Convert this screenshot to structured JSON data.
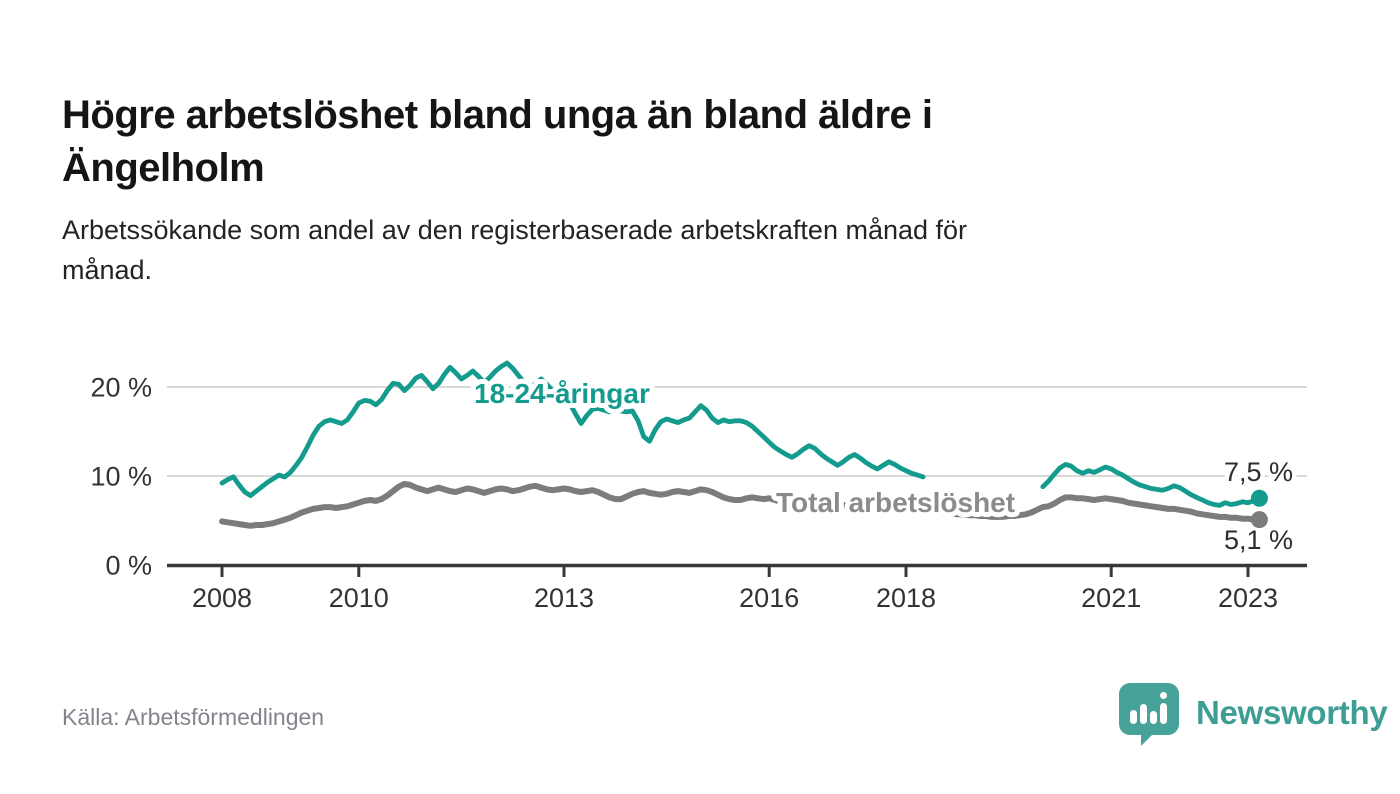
{
  "title": "Högre arbetslöshet bland unga än bland äldre i Ängelholm",
  "title_lines": [
    "Högre arbetslöshet bland unga än bland äldre i",
    "Ängelholm"
  ],
  "subtitle_lines": [
    "Arbetssökande som andel av den registerbaserade arbetskraften månad för",
    "månad."
  ],
  "source": "Källa: Arbetsförmedlingen",
  "logo": {
    "text": "Newsworthy",
    "icon": "bar-chart-speech-bubble-icon",
    "icon_color": "#47a29a",
    "text_color": "#3d9e94"
  },
  "colors": {
    "young_line": "#139b8d",
    "total_line": "#7c7c7c",
    "total_label": "#8b8b8b",
    "grid": "#d9d9d9",
    "axis": "#383838"
  },
  "chart_data": {
    "type": "line",
    "title": "",
    "xlabel": "",
    "ylabel": "",
    "unit": "%",
    "x_start_year": 2008,
    "x_end": "2023-03",
    "points_per_year": 12,
    "xlim": [
      2007.2,
      2023.87
    ],
    "ylim": [
      0,
      25
    ],
    "grid": "horizontal",
    "legend_position": "inline-labels",
    "x_ticks": [
      "2008",
      "2010",
      "2013",
      "2016",
      "2018",
      "2021",
      "2023"
    ],
    "x_tick_years": [
      2008,
      2010,
      2013,
      2016,
      2018,
      2021,
      2023
    ],
    "y_ticks": [
      {
        "value": 0,
        "label": "0 %",
        "grid": false
      },
      {
        "value": 10,
        "label": "10 %",
        "grid": true
      },
      {
        "value": 20,
        "label": "20 %",
        "grid": true
      }
    ],
    "series": [
      {
        "name": "18-24-åringar",
        "label": "18-24-åringar",
        "color": "#139b8d",
        "end_label": "7,5 %",
        "end_value": 7.5,
        "values": [
          9.2,
          9.6,
          9.9,
          9.0,
          8.2,
          7.8,
          8.3,
          8.8,
          9.3,
          9.7,
          10.1,
          9.9,
          10.4,
          11.2,
          12.1,
          13.3,
          14.6,
          15.6,
          16.1,
          16.3,
          16.1,
          15.9,
          16.3,
          17.2,
          18.2,
          18.5,
          18.4,
          18.0,
          18.6,
          19.6,
          20.4,
          20.3,
          19.6,
          20.2,
          21.0,
          21.3,
          20.6,
          19.8,
          20.4,
          21.4,
          22.2,
          21.6,
          20.9,
          21.3,
          21.8,
          21.2,
          20.5,
          21.1,
          21.8,
          22.3,
          22.7,
          22.1,
          21.3,
          20.5,
          19.8,
          20.4,
          20.9,
          20.3,
          19.6,
          19.1,
          18.9,
          18.2,
          17.0,
          15.9,
          16.8,
          17.5,
          17.6,
          17.4,
          17.2,
          17.4,
          17.3,
          17.2,
          17.3,
          16.2,
          14.4,
          13.9,
          15.2,
          16.1,
          16.4,
          16.2,
          16.0,
          16.3,
          16.5,
          17.2,
          17.9,
          17.4,
          16.5,
          16.0,
          16.3,
          16.1,
          16.2,
          16.2,
          16.0,
          15.6,
          15.0,
          14.4,
          13.8,
          13.2,
          12.8,
          12.4,
          12.1,
          12.5,
          13.0,
          13.4,
          13.1,
          12.5,
          12.0,
          11.6,
          11.2,
          11.6,
          12.1,
          12.4,
          12.0,
          11.5,
          11.1,
          10.8,
          11.2,
          11.6,
          11.3,
          10.9,
          10.6,
          10.3,
          10.1,
          9.9,
          null,
          null,
          null,
          null,
          null,
          null,
          null,
          null,
          null,
          null,
          null,
          null,
          null,
          null,
          null,
          null,
          null,
          null,
          null,
          null,
          8.8,
          9.4,
          10.2,
          10.9,
          11.3,
          11.1,
          10.6,
          10.3,
          10.6,
          10.4,
          10.7,
          11.0,
          10.8,
          10.4,
          10.1,
          9.7,
          9.3,
          9.0,
          8.8,
          8.6,
          8.5,
          8.4,
          8.6,
          8.9,
          8.7,
          8.3,
          7.9,
          7.6,
          7.3,
          7.0,
          6.8,
          6.7,
          7.0,
          6.8,
          6.9,
          7.1,
          7.0,
          7.2,
          7.5
        ]
      },
      {
        "name": "Total arbetslöshet",
        "label": "Total arbetslöshet",
        "color": "#7c7c7c",
        "end_label": "5,1 %",
        "end_value": 5.1,
        "values": [
          4.9,
          4.8,
          4.7,
          4.6,
          4.5,
          4.4,
          4.5,
          4.5,
          4.6,
          4.7,
          4.9,
          5.1,
          5.3,
          5.6,
          5.9,
          6.1,
          6.3,
          6.4,
          6.5,
          6.5,
          6.4,
          6.5,
          6.6,
          6.8,
          7.0,
          7.2,
          7.3,
          7.2,
          7.4,
          7.8,
          8.3,
          8.8,
          9.1,
          9.0,
          8.7,
          8.5,
          8.3,
          8.5,
          8.7,
          8.5,
          8.3,
          8.2,
          8.4,
          8.6,
          8.5,
          8.3,
          8.1,
          8.3,
          8.5,
          8.6,
          8.5,
          8.3,
          8.4,
          8.6,
          8.8,
          8.9,
          8.7,
          8.5,
          8.4,
          8.5,
          8.6,
          8.5,
          8.3,
          8.2,
          8.3,
          8.4,
          8.2,
          7.9,
          7.6,
          7.4,
          7.4,
          7.7,
          8.0,
          8.2,
          8.3,
          8.1,
          8.0,
          7.9,
          8.0,
          8.2,
          8.3,
          8.2,
          8.1,
          8.3,
          8.5,
          8.4,
          8.2,
          7.9,
          7.6,
          7.4,
          7.3,
          7.3,
          7.5,
          7.6,
          7.5,
          7.4,
          7.5,
          7.3,
          7.1,
          7.0,
          7.1,
          7.3,
          7.4,
          7.3,
          7.2,
          7.1,
          7.0,
          6.9,
          6.8,
          6.7,
          6.8,
          6.9,
          6.8,
          6.6,
          6.5,
          6.4,
          6.5,
          6.6,
          6.5,
          6.4,
          6.3,
          6.2,
          6.2,
          6.1,
          6.0,
          5.9,
          5.9,
          5.8,
          5.8,
          5.7,
          5.7,
          5.6,
          5.6,
          5.5,
          5.5,
          5.4,
          5.4,
          5.4,
          5.5,
          5.5,
          5.6,
          5.7,
          5.9,
          6.2,
          6.5,
          6.6,
          6.9,
          7.3,
          7.6,
          7.6,
          7.5,
          7.5,
          7.4,
          7.3,
          7.4,
          7.5,
          7.4,
          7.3,
          7.2,
          7.0,
          6.9,
          6.8,
          6.7,
          6.6,
          6.5,
          6.4,
          6.3,
          6.3,
          6.2,
          6.1,
          6.0,
          5.8,
          5.7,
          5.6,
          5.5,
          5.4,
          5.4,
          5.3,
          5.3,
          5.2,
          5.2,
          5.1,
          5.1
        ]
      }
    ]
  }
}
